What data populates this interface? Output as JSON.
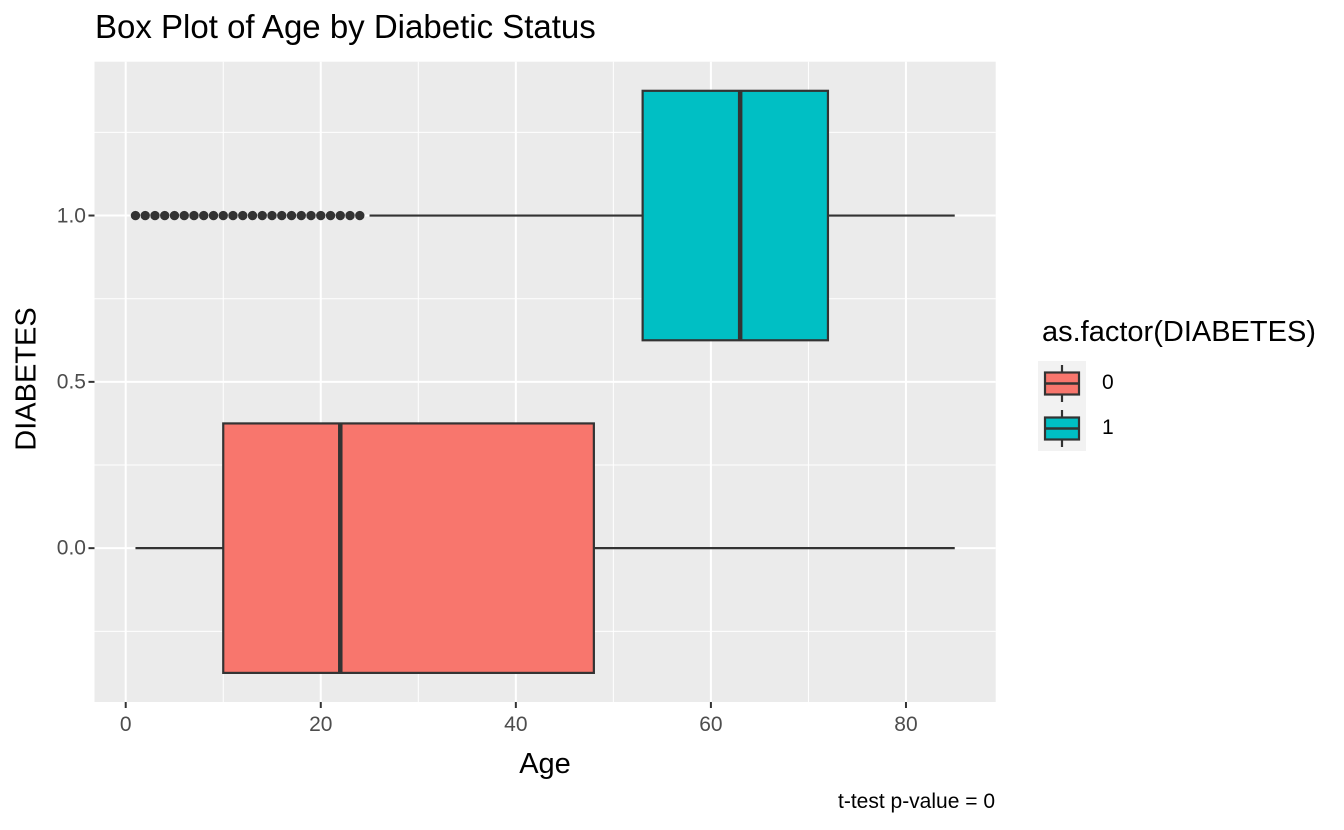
{
  "page": {
    "background": "#FFFFFF"
  },
  "chart_data": {
    "type": "boxplot",
    "orientation": "horizontal",
    "title": "Box Plot of Age by Diabetic Status",
    "xlabel": "Age",
    "ylabel": "DIABETES",
    "caption": "t-test p-value = 0",
    "legend_title": "as.factor(DIABETES)",
    "legend_position": "right",
    "panel_bg": "#EBEBEB",
    "grid_color": "#FFFFFF",
    "grid": true,
    "legend_key_bg": "#F2F2F2",
    "stroke_color": "#333333",
    "tick_label_color": "#4D4D4D",
    "xlim": [
      -3.2,
      89.2
    ],
    "ylim": [
      -0.4625,
      1.4625
    ],
    "x_major_ticks": [
      0,
      20,
      40,
      60,
      80
    ],
    "x_tick_labels": [
      "0",
      "20",
      "40",
      "60",
      "80"
    ],
    "x_minor_ticks": [
      10,
      30,
      50,
      70
    ],
    "y_major_ticks": [
      0,
      0.5,
      1
    ],
    "y_tick_labels": [
      "0.0",
      "0.5",
      "1.0"
    ],
    "y_minor_ticks": [
      -0.25,
      0.25,
      0.75,
      1.25
    ],
    "series": [
      {
        "name": "0",
        "label": "0",
        "color": "#F8766D",
        "y": 0,
        "box_half_height": 0.375,
        "whisker_min": 1,
        "q1": 10,
        "median": 22,
        "q3": 48,
        "whisker_max": 85,
        "outliers": []
      },
      {
        "name": "1",
        "label": "1",
        "color": "#00BFC4",
        "y": 1,
        "box_half_height": 0.375,
        "whisker_min": 25,
        "q1": 53,
        "median": 63,
        "q3": 72,
        "whisker_max": 85,
        "outliers": [
          1,
          2,
          3,
          4,
          5,
          6,
          7,
          8,
          9,
          10,
          11,
          12,
          13,
          14,
          15,
          16,
          17,
          18,
          19,
          20,
          21,
          22,
          23,
          24
        ]
      }
    ]
  }
}
